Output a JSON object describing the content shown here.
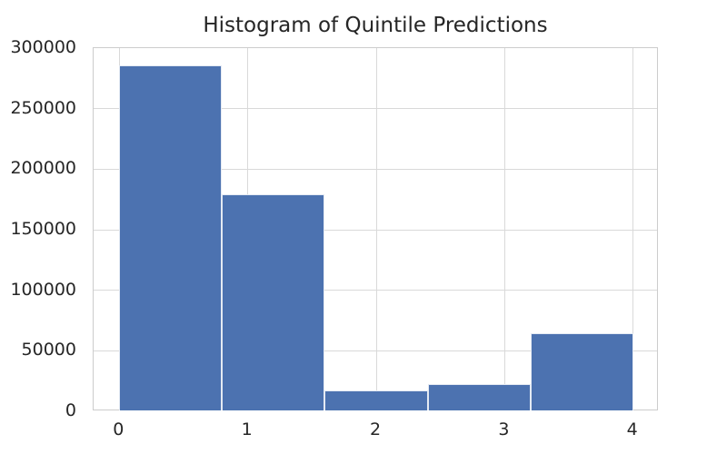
{
  "figure": {
    "title": "Histogram of Quintile Predictions"
  },
  "chart_data": {
    "type": "bar",
    "subtype": "histogram",
    "title": "Histogram of Quintile Predictions",
    "xlabel": "",
    "ylabel": "",
    "bin_edges": [
      0,
      0.8,
      1.6,
      2.4,
      3.2,
      4.0
    ],
    "values": [
      286000,
      179000,
      17600,
      22500,
      64300
    ],
    "x_ticks": [
      0,
      1,
      2,
      3,
      4
    ],
    "x_tick_labels": [
      "0",
      "1",
      "2",
      "3",
      "4"
    ],
    "y_ticks": [
      0,
      50000,
      100000,
      150000,
      200000,
      250000,
      300000
    ],
    "y_tick_labels": [
      "0",
      "50000",
      "100000",
      "150000",
      "200000",
      "250000",
      "300000"
    ],
    "xlim": [
      -0.2,
      4.2
    ],
    "ylim": [
      0,
      300000
    ],
    "grid": true,
    "legend": false,
    "colors": {
      "bar_fill": "#4C72B0",
      "bar_edge": "rgba(255,255,255,0.85)",
      "gridline": "#d9d9d9",
      "spine": "#cccccc",
      "text": "#262626",
      "background": "#ffffff"
    }
  }
}
